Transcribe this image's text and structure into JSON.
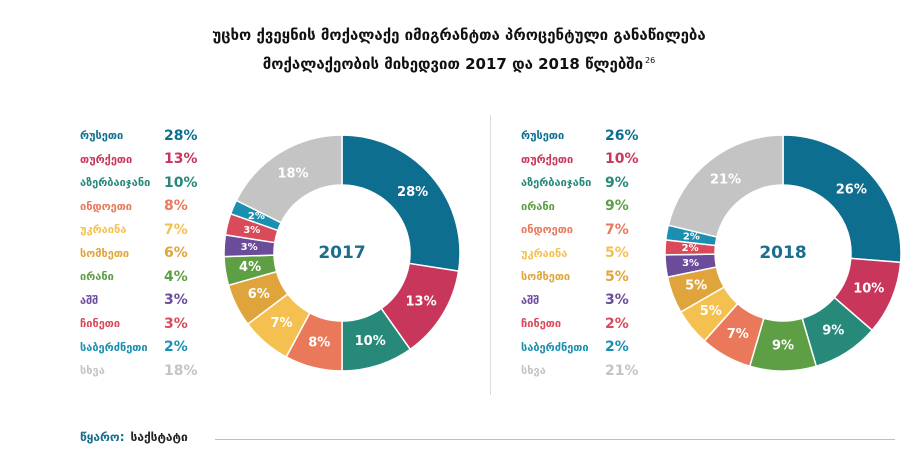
{
  "title": {
    "line1": "უცხო ქვეყნის მოქალაქე იმიგრანტთა პროცენტული განაწილება",
    "line2": "მოქალაქეობის მიხედვით 2017 და 2018 წლებში",
    "footnote": "26"
  },
  "source": {
    "label": "წყარო:",
    "value": "საქსტატი"
  },
  "chart_data": [
    {
      "type": "pie",
      "center_label": "2017",
      "categories": [
        "რუსეთი",
        "თურქეთი",
        "აზერბაიჯანი",
        "ინდოეთი",
        "უკრაინა",
        "სომხეთი",
        "ირანი",
        "აშშ",
        "ჩინეთი",
        "საბერძნეთი",
        "სხვა"
      ],
      "values": [
        28,
        13,
        10,
        8,
        7,
        6,
        4,
        3,
        3,
        2,
        18
      ],
      "labels": [
        "28%",
        "13%",
        "10%",
        "8%",
        "7%",
        "6%",
        "4%",
        "3%",
        "3%",
        "2%",
        "18%"
      ],
      "colors": [
        "#0e6e8f",
        "#c8375b",
        "#26897a",
        "#e9795a",
        "#f4c150",
        "#dfa53c",
        "#5e9f45",
        "#6b4c9a",
        "#d94b5a",
        "#1a8fb0",
        "#c4c4c4"
      ]
    },
    {
      "type": "pie",
      "center_label": "2018",
      "categories": [
        "რუსეთი",
        "თურქეთი",
        "აზერბაიჯანი",
        "ირანი",
        "ინდოეთი",
        "უკრაინა",
        "სომხეთი",
        "აშშ",
        "ჩინეთი",
        "საბერძნეთი",
        "სხვა"
      ],
      "values": [
        26,
        10,
        9,
        9,
        7,
        5,
        5,
        3,
        2,
        2,
        21
      ],
      "labels": [
        "26%",
        "10%",
        "9%",
        "9%",
        "7%",
        "5%",
        "5%",
        "3%",
        "2%",
        "2%",
        "21%"
      ],
      "colors": [
        "#0e6e8f",
        "#c8375b",
        "#26897a",
        "#5e9f45",
        "#e9795a",
        "#f4c150",
        "#dfa53c",
        "#6b4c9a",
        "#d94b5a",
        "#1a8fb0",
        "#c4c4c4"
      ]
    }
  ]
}
